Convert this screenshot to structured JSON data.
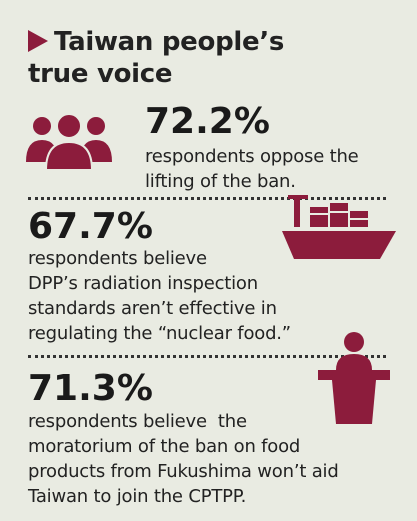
{
  "title": {
    "lines": [
      "Taiwan people’s",
      "true voice"
    ]
  },
  "stats": [
    {
      "value": "72.2%",
      "lines": [
        "respondents oppose the",
        "lifting of the ban."
      ]
    },
    {
      "value": "67.7%",
      "lines": [
        "respondents believe",
        "DPP’s radiation inspection",
        "standards aren’t effective in",
        "regulating the “nuclear food.”"
      ]
    },
    {
      "value": "71.3%",
      "lines": [
        "respondents believe  the",
        "moratorium of the ban on food",
        "products from Fukushima won’t aid",
        "Taiwan to join the CPTPP."
      ]
    }
  ]
}
